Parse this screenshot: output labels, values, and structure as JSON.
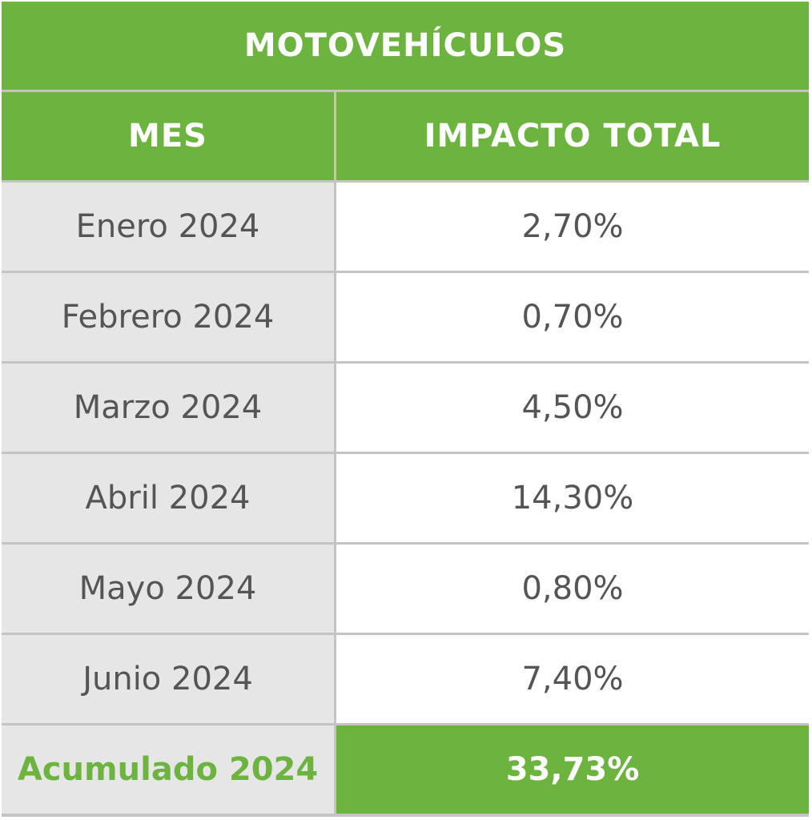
{
  "table": {
    "title": "MOTOVEHÍCULOS",
    "headers": {
      "month": "MES",
      "impact": "IMPACTO TOTAL"
    },
    "rows": [
      {
        "month": "Enero 2024",
        "impact": "2,70%"
      },
      {
        "month": "Febrero 2024",
        "impact": "0,70%"
      },
      {
        "month": "Marzo 2024",
        "impact": "4,50%"
      },
      {
        "month": "Abril 2024",
        "impact": "14,30%"
      },
      {
        "month": "Mayo 2024",
        "impact": "0,80%"
      },
      {
        "month": "Junio 2024",
        "impact": "7,40%"
      }
    ],
    "total": {
      "label": "Acumulado 2024",
      "value": "33,73%"
    }
  },
  "colors": {
    "header_green": "#6db33f",
    "row_label_bg": "#e7e6e6",
    "text_gray": "#555555",
    "grid_lines": "#c4c4c4"
  }
}
